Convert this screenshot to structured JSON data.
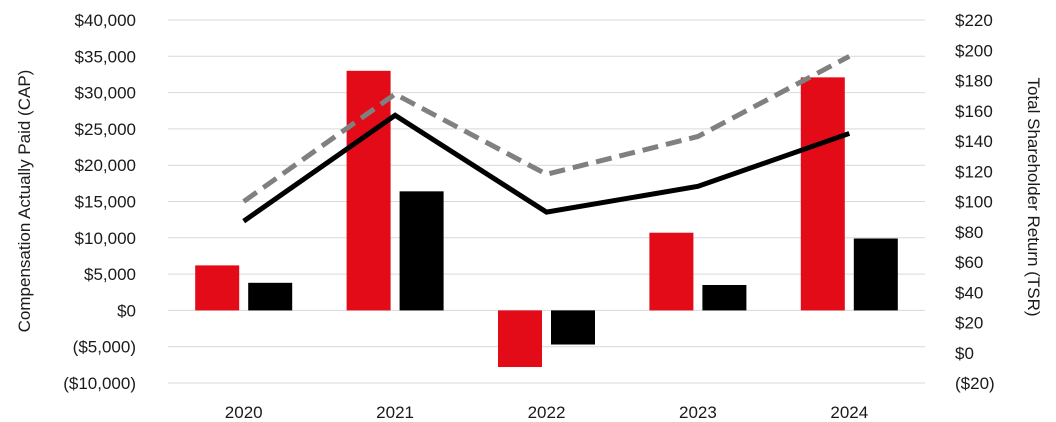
{
  "chart_data": {
    "type": "bar",
    "categories": [
      "2020",
      "2021",
      "2022",
      "2023",
      "2024"
    ],
    "ylabel": "Compensation Actually Paid (CAP)",
    "y2label": "Total Shareholder Return (TSR)",
    "ylim": [
      -10000,
      40000
    ],
    "y2lim": [
      -20,
      220
    ],
    "yticks": [
      {
        "value": 40000,
        "label": "$40,000"
      },
      {
        "value": 35000,
        "label": "$35,000"
      },
      {
        "value": 30000,
        "label": "$30,000"
      },
      {
        "value": 25000,
        "label": "$25,000"
      },
      {
        "value": 20000,
        "label": "$20,000"
      },
      {
        "value": 15000,
        "label": "$15,000"
      },
      {
        "value": 10000,
        "label": "$10,000"
      },
      {
        "value": 5000,
        "label": "$5,000"
      },
      {
        "value": 0,
        "label": "$0"
      },
      {
        "value": -5000,
        "label": "($5,000)"
      },
      {
        "value": -10000,
        "label": "($10,000)"
      }
    ],
    "y2ticks": [
      {
        "value": 220,
        "label": "$220"
      },
      {
        "value": 200,
        "label": "$200"
      },
      {
        "value": 180,
        "label": "$180"
      },
      {
        "value": 160,
        "label": "$160"
      },
      {
        "value": 140,
        "label": "$140"
      },
      {
        "value": 120,
        "label": "$120"
      },
      {
        "value": 100,
        "label": "$100"
      },
      {
        "value": 80,
        "label": "$80"
      },
      {
        "value": 60,
        "label": "$60"
      },
      {
        "value": 40,
        "label": "$40"
      },
      {
        "value": 20,
        "label": "$20"
      },
      {
        "value": 0,
        "label": "$0"
      },
      {
        "value": -20,
        "label": "($20)"
      }
    ],
    "bar_series": [
      {
        "key": "red",
        "color": "#e30b17",
        "values": [
          6200,
          33000,
          -7800,
          10700,
          32100
        ]
      },
      {
        "key": "black",
        "color": "#000000",
        "values": [
          3800,
          16400,
          -4700,
          3500,
          9900
        ]
      }
    ],
    "line_series": [
      {
        "key": "black-solid",
        "color": "#000000",
        "dashed": false,
        "values": [
          87,
          157,
          93,
          110,
          145
        ]
      },
      {
        "key": "gray-dashed",
        "color": "#808080",
        "dashed": true,
        "values": [
          100,
          171,
          118,
          143,
          196
        ]
      }
    ],
    "grid": true
  }
}
